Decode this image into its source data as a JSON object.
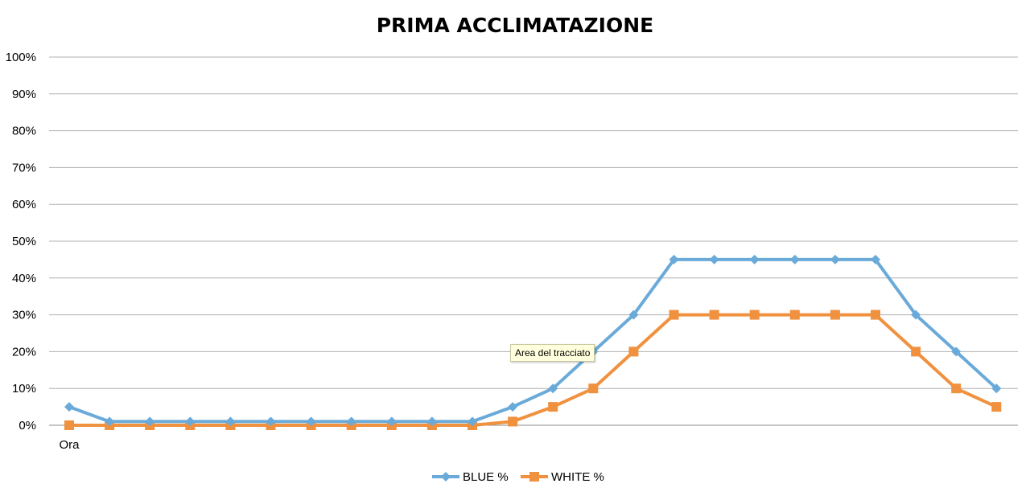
{
  "chart_data": {
    "type": "line",
    "title": "PRIMA ACCLIMATAZIONE",
    "ylim": [
      0,
      100
    ],
    "yticks": [
      "0%",
      "10%",
      "20%",
      "30%",
      "40%",
      "50%",
      "60%",
      "70%",
      "80%",
      "90%",
      "100%"
    ],
    "categories": [
      "Ora",
      "",
      "",
      "",
      "",
      "",
      "",
      "",
      "",
      "",
      "",
      "",
      "",
      "",
      "",
      "",
      "",
      "",
      "",
      "",
      "",
      "",
      "",
      ""
    ],
    "series": [
      {
        "name": "BLUE %",
        "color": "#6aaad9",
        "marker": "diamond",
        "values": [
          5,
          1,
          1,
          1,
          1,
          1,
          1,
          1,
          1,
          1,
          1,
          5,
          10,
          20,
          30,
          45,
          45,
          45,
          45,
          45,
          45,
          30,
          20,
          10
        ]
      },
      {
        "name": "WHITE %",
        "color": "#f0913f",
        "marker": "square",
        "values": [
          0,
          0,
          0,
          0,
          0,
          0,
          0,
          0,
          0,
          0,
          0,
          1,
          5,
          10,
          20,
          30,
          30,
          30,
          30,
          30,
          30,
          20,
          10,
          5
        ]
      }
    ],
    "grid": true,
    "legend": "bottom"
  },
  "tooltip": {
    "text": "Area del tracciato"
  }
}
